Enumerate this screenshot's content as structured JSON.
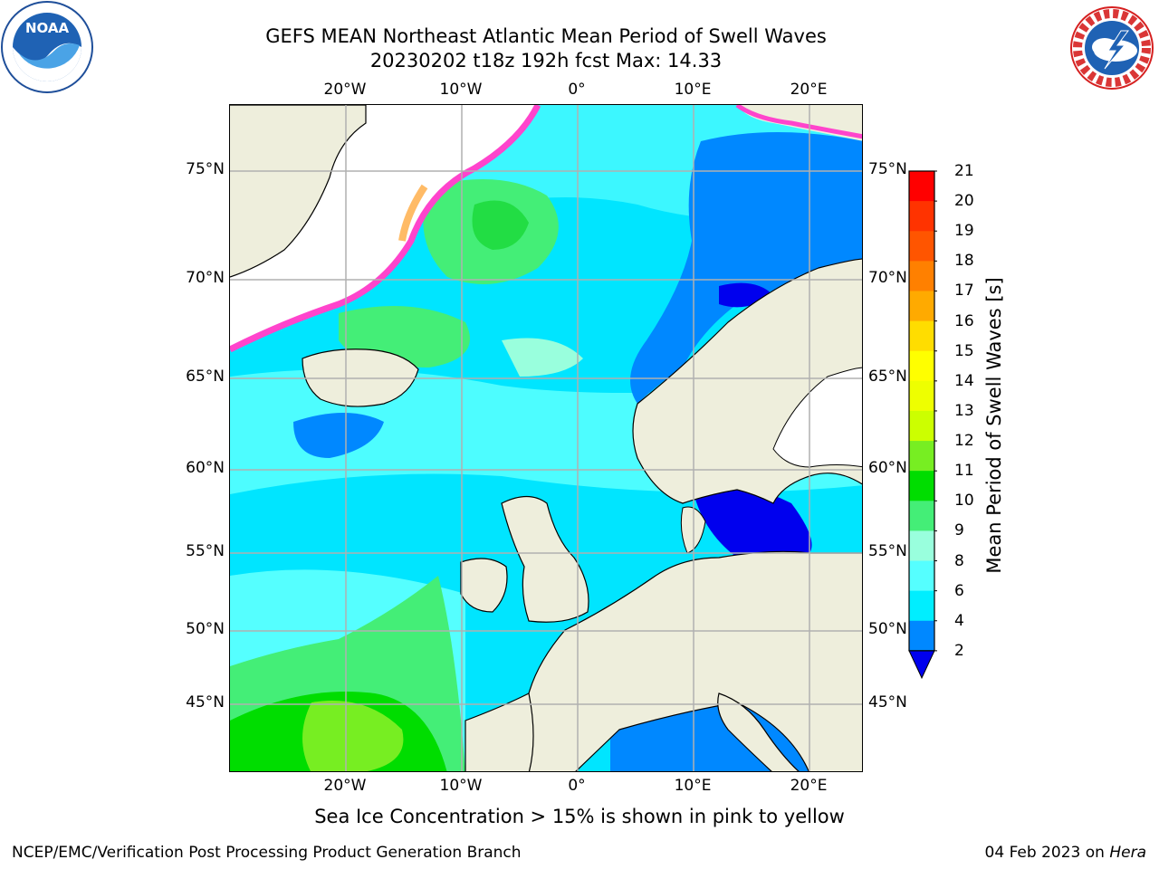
{
  "header": {
    "title_line1": "GEFS MEAN Northeast Atlantic Mean Period of Swell Waves",
    "title_line2": "20230202 t18z 192h fcst   Max: 14.33"
  },
  "map": {
    "lon_ticks": [
      "20°W",
      "10°W",
      "0°",
      "10°E",
      "20°E"
    ],
    "lat_ticks": [
      "75°N",
      "70°N",
      "65°N",
      "60°N",
      "55°N",
      "50°N",
      "45°N"
    ],
    "colors": {
      "land": "#eeeedc",
      "ice_white": "#ffffff",
      "grid": "#b0b0b0"
    }
  },
  "colorbar": {
    "label": "Mean Period of Swell Waves [s]",
    "ticks": [
      "21",
      "20",
      "19",
      "18",
      "17",
      "16",
      "15",
      "14",
      "13",
      "12",
      "11",
      "10",
      "9",
      "8",
      "6",
      "4",
      "2"
    ],
    "extend": "min",
    "colors": [
      "#ff0000",
      "#ff3300",
      "#ff5500",
      "#ff8000",
      "#ffaa00",
      "#ffdd00",
      "#ffff00",
      "#eeff00",
      "#ccff00",
      "#77ee22",
      "#00dd00",
      "#44ee77",
      "#99ffdd",
      "#55ffff",
      "#00eeff",
      "#0088ff",
      "#0000ee"
    ]
  },
  "notes": {
    "ice": "Sea Ice Concentration > 15% is shown in pink to yellow"
  },
  "footer": {
    "left": "NCEP/EMC/Verification Post Processing Product Generation Branch",
    "date": "04 Feb 2023 on",
    "host": "Hera"
  },
  "logos": {
    "left": "noaa-logo",
    "right": "nws-logo"
  }
}
